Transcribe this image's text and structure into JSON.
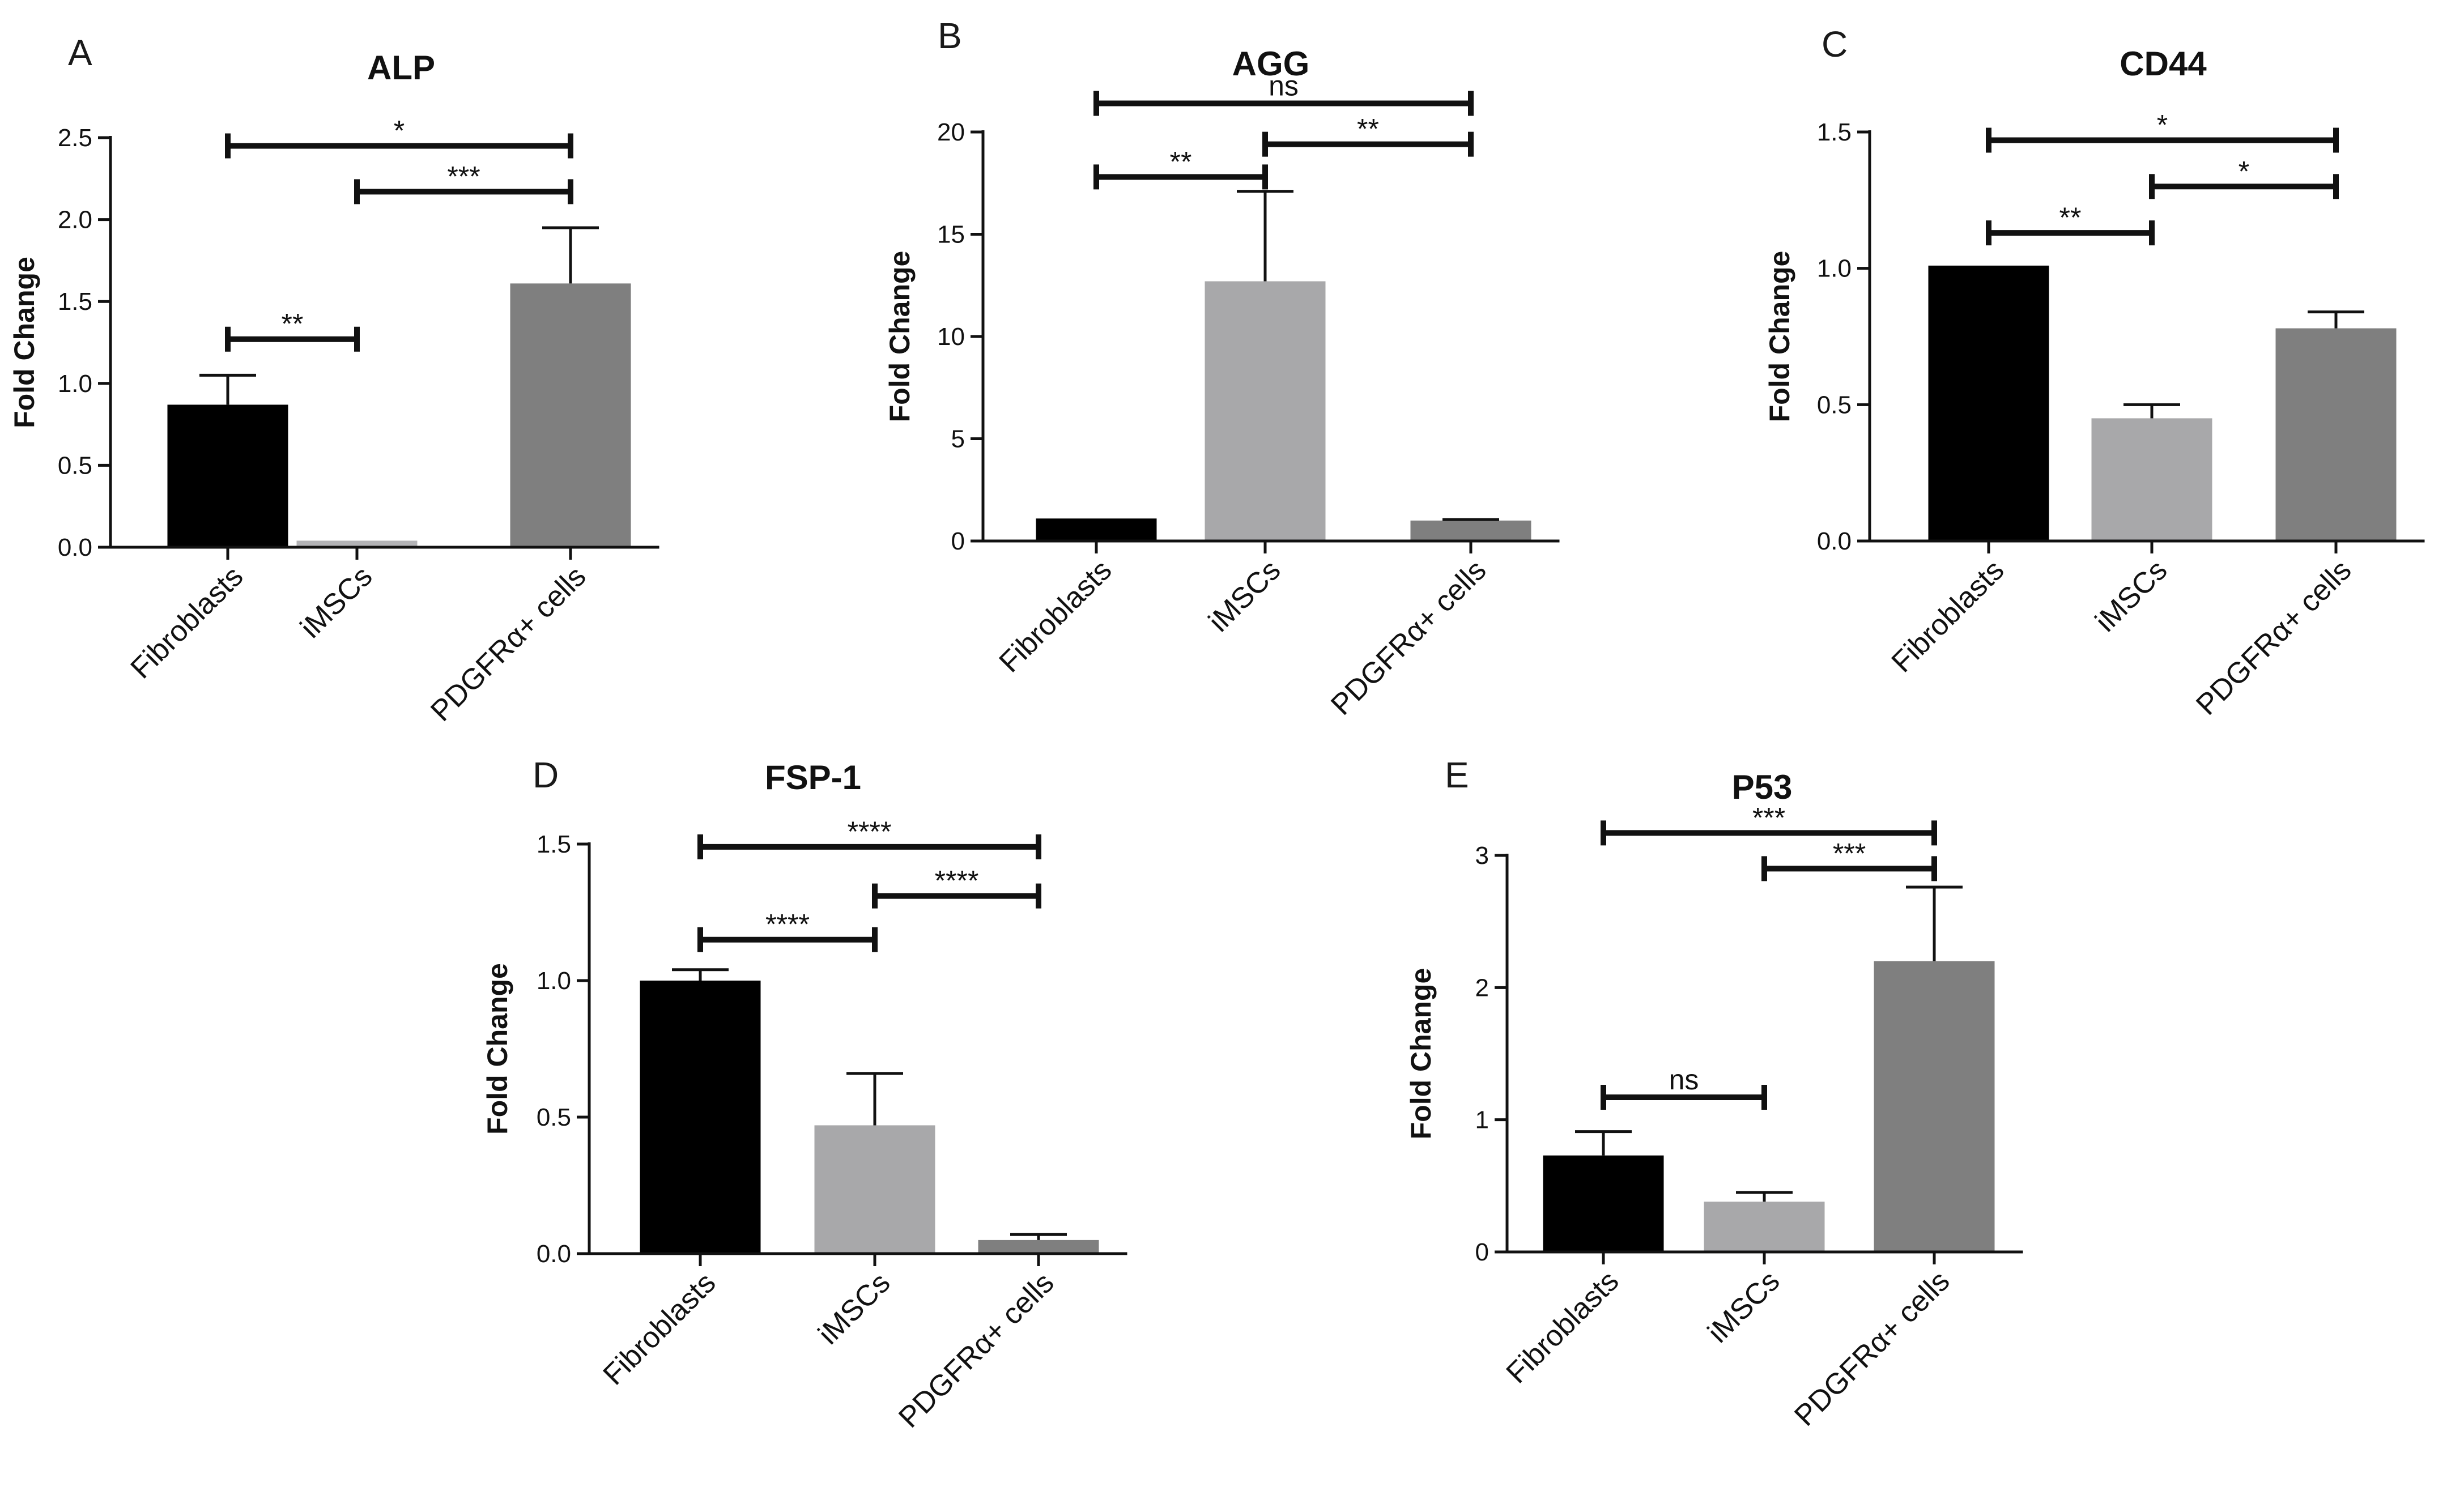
{
  "chart_data": [
    {
      "id": "A",
      "type": "bar",
      "panel_letter": "A",
      "title": "ALP",
      "ylabel": "Fold Change",
      "ylim": [
        0,
        2.5
      ],
      "yticks": [
        0.0,
        0.5,
        1.0,
        1.5,
        2.0,
        2.5
      ],
      "ytick_labels": [
        "0.0",
        "0.5",
        "1.0",
        "1.5",
        "2.0",
        "2.5"
      ],
      "categories": [
        "Fibroblasts",
        "iMSCs",
        "PDGFRα+ cells"
      ],
      "values": [
        0.87,
        0.04,
        1.61
      ],
      "errors": [
        0.18,
        0.0,
        0.34
      ],
      "colors": [
        "#000000",
        "#b3b3b6",
        "#7f7f7f"
      ],
      "significance": [
        {
          "from": 0,
          "to": 2,
          "label": "*",
          "y": 2.45
        },
        {
          "from": 1,
          "to": 2,
          "label": "***",
          "y": 2.17
        },
        {
          "from": 0,
          "to": 1,
          "label": "**",
          "y": 1.27
        }
      ]
    },
    {
      "id": "B",
      "type": "bar",
      "panel_letter": "B",
      "title": "AGG",
      "ylabel": "Fold Change",
      "ylim": [
        0,
        20
      ],
      "yticks": [
        0,
        5,
        10,
        15,
        20
      ],
      "ytick_labels": [
        "0",
        "5",
        "10",
        "15",
        "20"
      ],
      "categories": [
        "Fibroblasts",
        "iMSCs",
        "PDGFRα+ cells"
      ],
      "values": [
        1.1,
        12.7,
        1.0
      ],
      "errors": [
        0.0,
        4.4,
        0.05
      ],
      "colors": [
        "#000000",
        "#a8a8aa",
        "#7f7f7f"
      ],
      "significance": [
        {
          "from": 0,
          "to": 2,
          "label": "ns",
          "y": 21.4
        },
        {
          "from": 1,
          "to": 2,
          "label": "**",
          "y": 19.4
        },
        {
          "from": 0,
          "to": 1,
          "label": "**",
          "y": 17.8
        }
      ]
    },
    {
      "id": "C",
      "type": "bar",
      "panel_letter": "C",
      "title": "CD44",
      "ylabel": "Fold Change",
      "ylim": [
        0,
        1.5
      ],
      "yticks": [
        0.0,
        0.5,
        1.0,
        1.5
      ],
      "ytick_labels": [
        "0.0",
        "0.5",
        "1.0",
        "1.5"
      ],
      "categories": [
        "Fibroblasts",
        "iMSCs",
        "PDGFRα+ cells"
      ],
      "values": [
        1.01,
        0.45,
        0.78
      ],
      "errors": [
        0.0,
        0.05,
        0.06
      ],
      "colors": [
        "#000000",
        "#a8a8aa",
        "#7f7f7f"
      ],
      "significance": [
        {
          "from": 0,
          "to": 2,
          "label": "*",
          "y": 1.47
        },
        {
          "from": 1,
          "to": 2,
          "label": "*",
          "y": 1.3
        },
        {
          "from": 0,
          "to": 1,
          "label": "**",
          "y": 1.13
        }
      ]
    },
    {
      "id": "D",
      "type": "bar",
      "panel_letter": "D",
      "title": "FSP-1",
      "ylabel": "Fold Change",
      "ylim": [
        0,
        1.5
      ],
      "yticks": [
        0.0,
        0.5,
        1.0,
        1.5
      ],
      "ytick_labels": [
        "0.0",
        "0.5",
        "1.0",
        "1.5"
      ],
      "categories": [
        "Fibroblasts",
        "iMSCs",
        "PDGFRα+ cells"
      ],
      "values": [
        1.0,
        0.47,
        0.05
      ],
      "errors": [
        0.04,
        0.19,
        0.02
      ],
      "colors": [
        "#000000",
        "#a8a8aa",
        "#7f7f7f"
      ],
      "significance": [
        {
          "from": 0,
          "to": 2,
          "label": "****",
          "y": 1.49
        },
        {
          "from": 1,
          "to": 2,
          "label": "****",
          "y": 1.31
        },
        {
          "from": 0,
          "to": 1,
          "label": "****",
          "y": 1.15
        }
      ]
    },
    {
      "id": "E",
      "type": "bar",
      "panel_letter": "E",
      "title": "P53",
      "ylabel": "Fold Change",
      "ylim": [
        0,
        3
      ],
      "yticks": [
        0,
        1,
        2,
        3
      ],
      "ytick_labels": [
        "0",
        "1",
        "2",
        "3"
      ],
      "categories": [
        "Fibroblasts",
        "iMSCs",
        "PDGFRα+ cells"
      ],
      "values": [
        0.73,
        0.38,
        2.2
      ],
      "errors": [
        0.18,
        0.07,
        0.56
      ],
      "colors": [
        "#000000",
        "#a8a8aa",
        "#7f7f7f"
      ],
      "significance": [
        {
          "from": 0,
          "to": 2,
          "label": "***",
          "y": 3.17
        },
        {
          "from": 1,
          "to": 2,
          "label": "***",
          "y": 2.9
        },
        {
          "from": 0,
          "to": 1,
          "label": "ns",
          "y": 1.17
        }
      ]
    }
  ]
}
